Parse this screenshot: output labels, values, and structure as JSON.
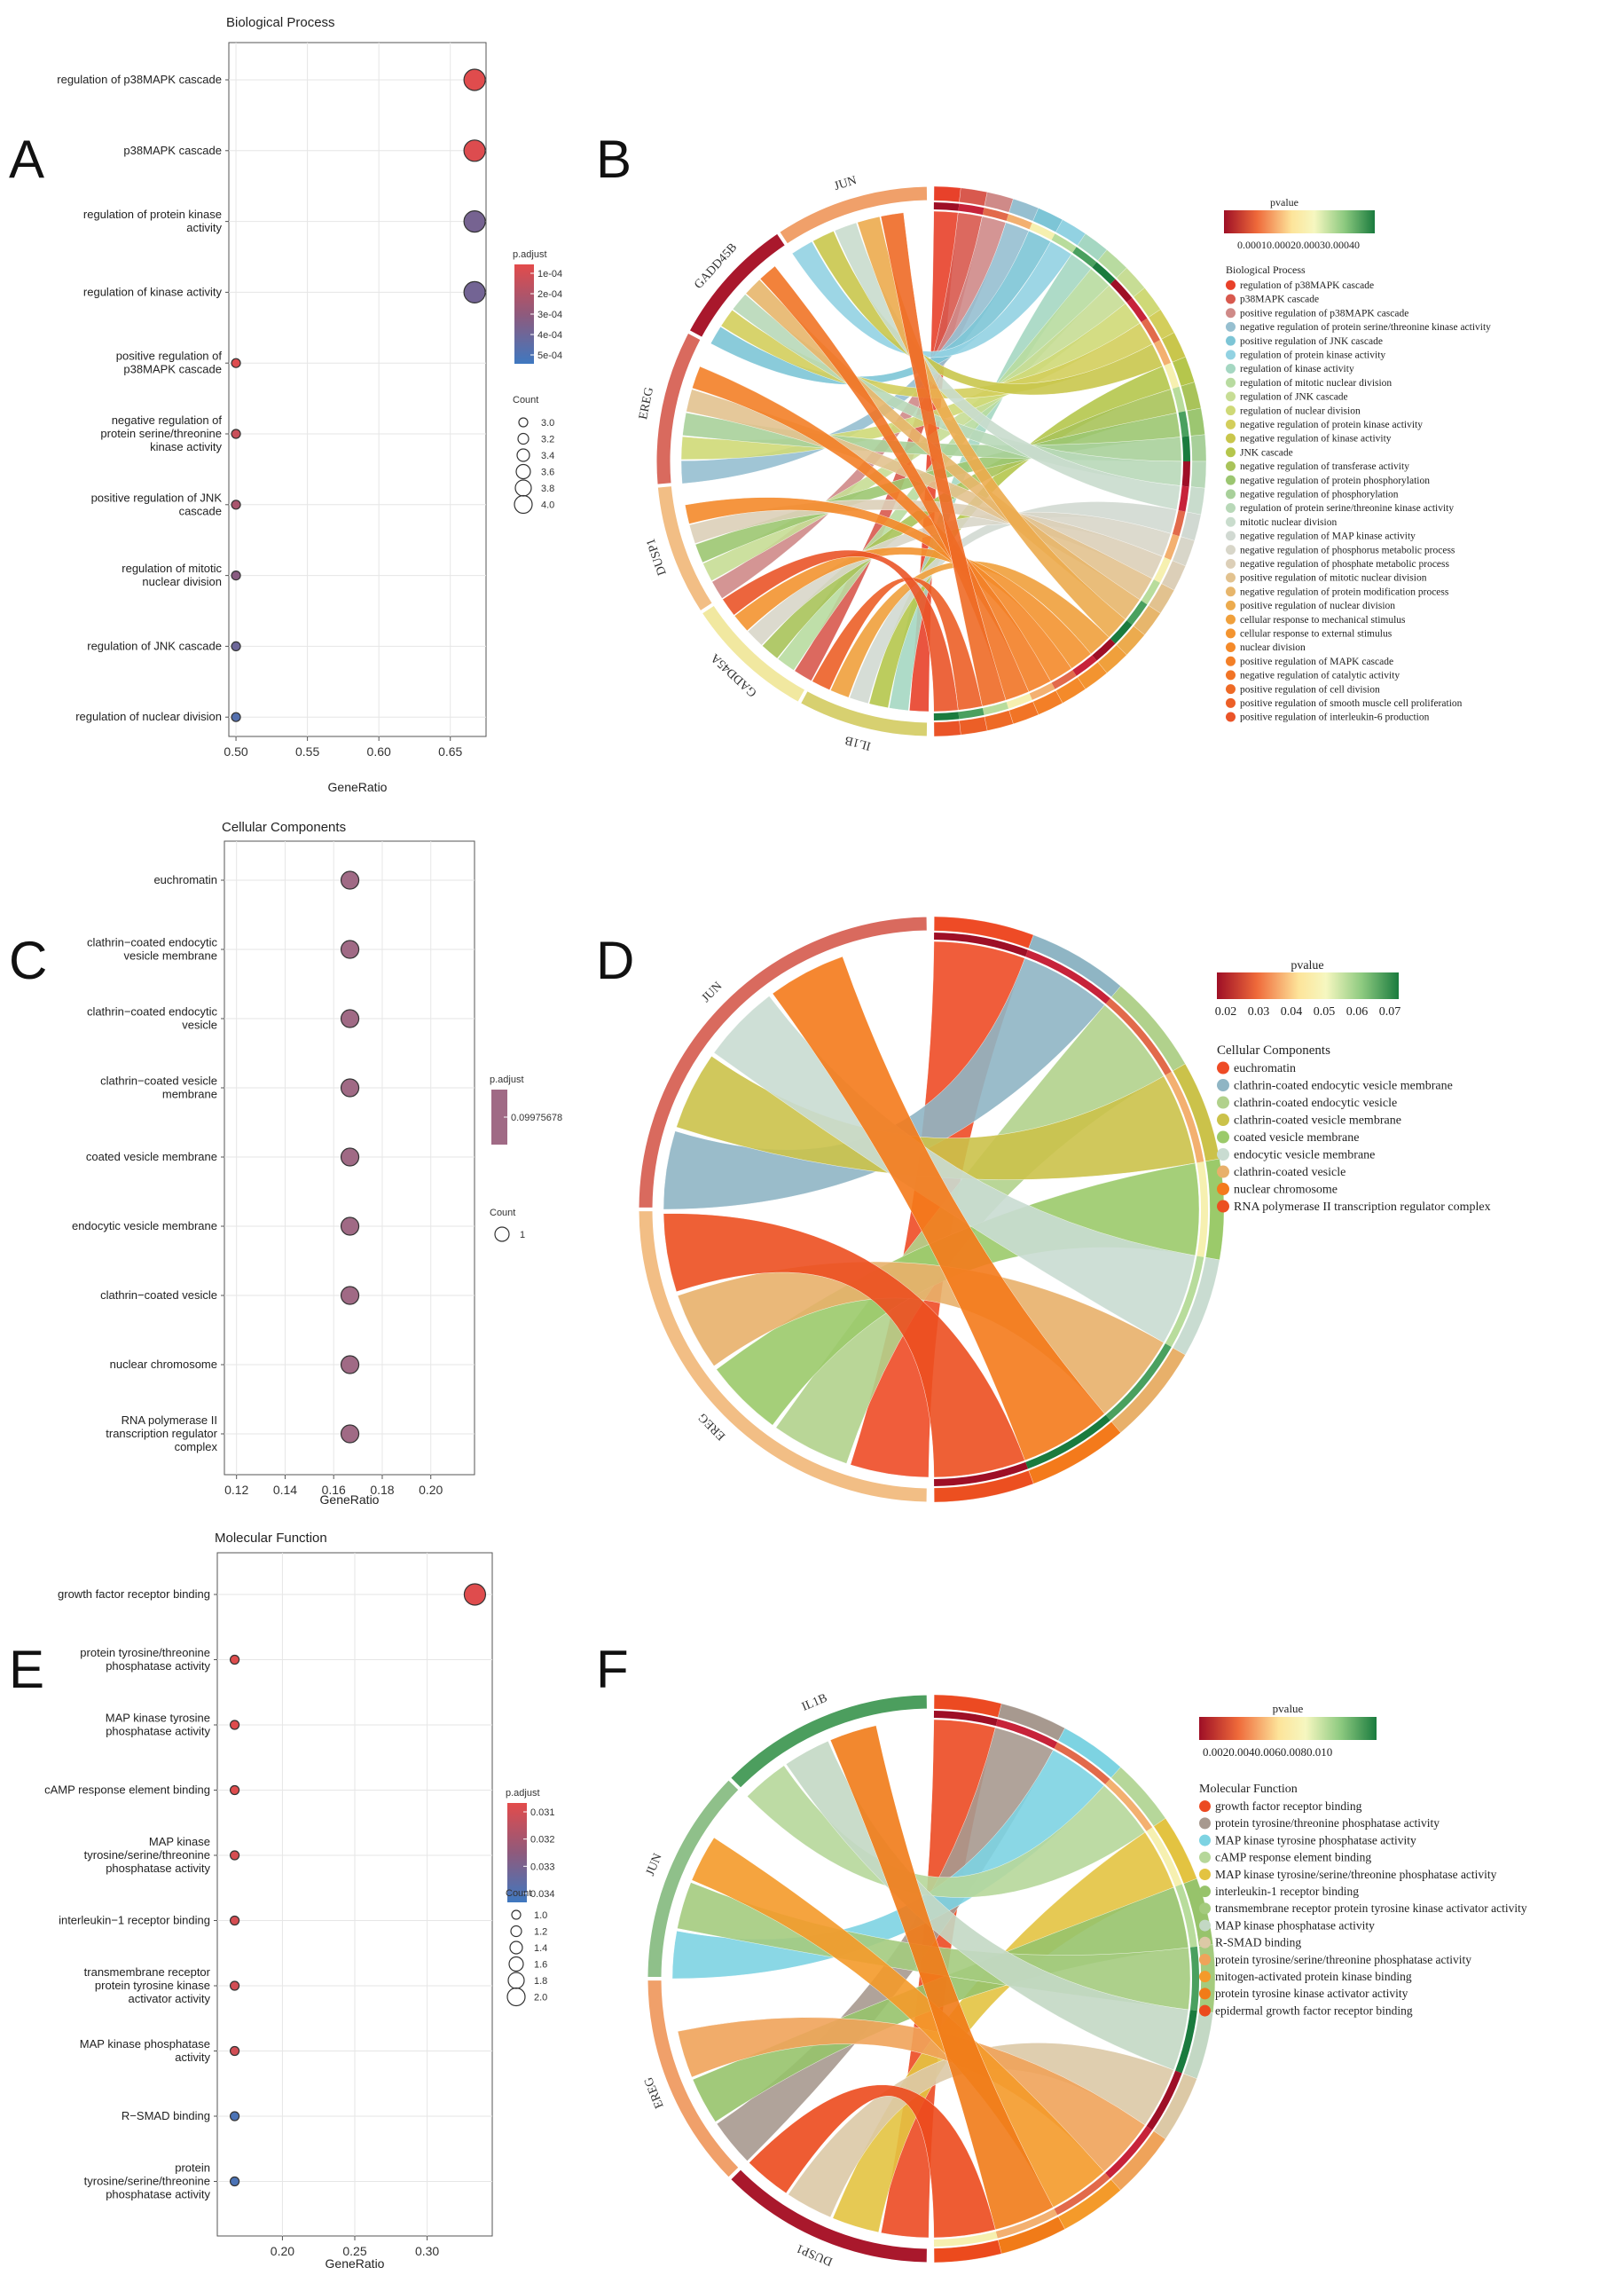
{
  "panel_letters": [
    "A",
    "B",
    "C",
    "D",
    "E",
    "F"
  ],
  "chart_data": [
    {
      "id": "A",
      "type": "scatter",
      "title": "Biological Process",
      "xlabel": "GeneRatio",
      "ylabel": "",
      "xlim": [
        0.495,
        0.675
      ],
      "xticks": [
        0.5,
        0.55,
        0.6,
        0.65
      ],
      "xtick_labels": [
        "0.50",
        "0.55",
        "0.60",
        "0.65"
      ],
      "categories": [
        "regulation of p38MAPK cascade",
        "p38MAPK cascade",
        "regulation of protein kinase activity",
        "regulation of kinase activity",
        "positive regulation of p38MAPK cascade",
        "negative regulation of protein serine/threonine kinase activity",
        "positive regulation of JNK cascade",
        "regulation of mitotic nuclear division",
        "regulation of JNK cascade",
        "regulation of nuclear division"
      ],
      "category_lines": [
        [
          "regulation of p38MAPK cascade"
        ],
        [
          "p38MAPK cascade"
        ],
        [
          "regulation of protein kinase",
          "activity"
        ],
        [
          "regulation of kinase activity"
        ],
        [
          "positive regulation of",
          "p38MAPK cascade"
        ],
        [
          "negative regulation of",
          "protein serine/threonine",
          "kinase activity"
        ],
        [
          "positive regulation of JNK",
          "cascade"
        ],
        [
          "regulation of mitotic",
          "nuclear division"
        ],
        [
          "regulation of JNK cascade"
        ],
        [
          "regulation of nuclear division"
        ]
      ],
      "gene_ratio": [
        0.667,
        0.667,
        0.667,
        0.667,
        0.5,
        0.5,
        0.5,
        0.5,
        0.5,
        0.5
      ],
      "count": [
        4,
        4,
        4,
        4,
        3,
        3,
        3,
        3,
        3,
        3
      ],
      "p_adjust": [
        2e-05,
        3e-05,
        0.00035,
        0.00036,
        3e-05,
        9e-05,
        0.00019,
        0.00029,
        0.00038,
        0.00046
      ],
      "color_legend": {
        "title": "p.adjust",
        "ticks": [
          "1e-04",
          "2e-04",
          "3e-04",
          "4e-04",
          "5e-04"
        ],
        "range": [
          1e-05,
          0.00053
        ]
      },
      "size_legend": {
        "title": "Count",
        "ticks": [
          "3.0",
          "3.2",
          "3.4",
          "3.6",
          "3.8",
          "4.0"
        ],
        "values": [
          3.0,
          3.2,
          3.4,
          3.6,
          3.8,
          4.0
        ]
      }
    },
    {
      "id": "B",
      "type": "chord",
      "genes": [
        "IL1B",
        "GADD45A",
        "DUSP1",
        "EREG",
        "GADD45B",
        "JUN"
      ],
      "pvalue_legend": {
        "title": "pvalue",
        "tick_text": "0.00010.00020.00030.00040"
      },
      "term_legend_title": "Biological Process",
      "terms": [
        "regulation of p38MAPK cascade",
        "p38MAPK cascade",
        "positive regulation of p38MAPK cascade",
        "negative regulation of protein serine/threonine kinase activity",
        "positive regulation of JNK cascade",
        "regulation of protein kinase activity",
        "regulation of kinase activity",
        "regulation of mitotic nuclear division",
        "regulation of JNK cascade",
        "regulation of nuclear division",
        "negative regulation of protein kinase activity",
        "negative regulation of kinase activity",
        "JNK cascade",
        "negative regulation of transferase activity",
        "negative regulation of protein phosphorylation",
        "negative regulation of phosphorylation",
        "regulation of protein serine/threonine kinase activity",
        "mitotic nuclear division",
        "negative regulation of MAP kinase activity",
        "negative regulation of phosphorus metabolic process",
        "negative regulation of phosphate metabolic process",
        "positive regulation of mitotic nuclear division",
        "negative regulation of protein modification process",
        "positive regulation of nuclear division",
        "cellular response to mechanical stimulus",
        "cellular response to external stimulus",
        "nuclear division",
        "positive regulation of MAPK cascade",
        "negative regulation of catalytic activity",
        "positive regulation of cell division",
        "positive regulation of smooth muscle cell proliferation",
        "positive regulation of interleukin-6 production"
      ],
      "term_colors": [
        "#e8412a",
        "#d8594e",
        "#cf8a88",
        "#96bfd0",
        "#7dc5d6",
        "#92d2e2",
        "#a5d7c2",
        "#b8dba0",
        "#c7dd95",
        "#cfd977",
        "#d3ce5c",
        "#c9c64c",
        "#b5c64c",
        "#a9c35a",
        "#9cc671",
        "#a8d09a",
        "#b8d8b8",
        "#c9dccd",
        "#d1d9d2",
        "#d8d6c9",
        "#dccfb8",
        "#e2c28f",
        "#e7b66c",
        "#ecab4e",
        "#f0a03c",
        "#f39430",
        "#f48a2a",
        "#f37f27",
        "#f17426",
        "#ee6a26",
        "#ec5f27",
        "#ea5428"
      ]
    },
    {
      "id": "C",
      "type": "scatter",
      "title": "Cellular Components",
      "xlabel": "GeneRatio",
      "ylabel": "",
      "xlim": [
        0.115,
        0.218
      ],
      "xticks": [
        0.12,
        0.14,
        0.16,
        0.18,
        0.2
      ],
      "xtick_labels": [
        "0.12",
        "0.14",
        "0.16",
        "0.18",
        "0.20"
      ],
      "categories": [
        "euchromatin",
        "clathrin-coated endocytic vesicle membrane",
        "clathrin-coated endocytic vesicle",
        "clathrin-coated vesicle membrane",
        "coated vesicle membrane",
        "endocytic vesicle membrane",
        "clathrin-coated vesicle",
        "nuclear chromosome",
        "RNA polymerase II transcription regulator complex"
      ],
      "category_lines": [
        [
          "euchromatin"
        ],
        [
          "clathrin−coated endocytic",
          "vesicle membrane"
        ],
        [
          "clathrin−coated endocytic",
          "vesicle"
        ],
        [
          "clathrin−coated vesicle",
          "membrane"
        ],
        [
          "coated vesicle membrane"
        ],
        [
          "endocytic vesicle membrane"
        ],
        [
          "clathrin−coated vesicle"
        ],
        [
          "nuclear chromosome"
        ],
        [
          "RNA polymerase II",
          "transcription regulator",
          "complex"
        ]
      ],
      "gene_ratio": [
        0.1667,
        0.1667,
        0.1667,
        0.1667,
        0.1667,
        0.1667,
        0.1667,
        0.1667,
        0.1667
      ],
      "count": [
        1,
        1,
        1,
        1,
        1,
        1,
        1,
        1,
        1
      ],
      "p_adjust": [
        0.09975678,
        0.09975678,
        0.09975678,
        0.09975678,
        0.09975678,
        0.09975678,
        0.09975678,
        0.09975678,
        0.09975678
      ],
      "color_legend": {
        "title": "p.adjust",
        "ticks": [
          "0.09975678"
        ]
      },
      "size_legend": {
        "title": "Count",
        "ticks": [
          "1"
        ],
        "values": [
          1
        ]
      }
    },
    {
      "id": "D",
      "type": "chord",
      "genes": [
        "EREG",
        "JUN"
      ],
      "pvalue_legend": {
        "title": "pvalue",
        "ticks": [
          "0.02",
          "0.03",
          "0.04",
          "0.05",
          "0.06",
          "0.07"
        ]
      },
      "term_legend_title": "Cellular Components",
      "terms": [
        "euchromatin",
        "clathrin-coated endocytic vesicle membrane",
        "clathrin-coated endocytic vesicle",
        "clathrin-coated vesicle membrane",
        "coated vesicle membrane",
        "endocytic vesicle membrane",
        "clathrin-coated vesicle",
        "nuclear chromosome",
        "RNA polymerase II transcription regulator complex"
      ],
      "term_colors": [
        "#ee4b26",
        "#8fb5c4",
        "#b1d18c",
        "#cbc24a",
        "#9bca6a",
        "#c9dcd1",
        "#e8b06a",
        "#f47a1b",
        "#ec4f20"
      ]
    },
    {
      "id": "E",
      "type": "scatter",
      "title": "Molecular Function",
      "xlabel": "GeneRatio",
      "ylabel": "",
      "xlim": [
        0.155,
        0.345
      ],
      "xticks": [
        0.2,
        0.25,
        0.3
      ],
      "xtick_labels": [
        "0.20",
        "0.25",
        "0.30"
      ],
      "categories": [
        "growth factor receptor binding",
        "protein tyrosine/threonine phosphatase activity",
        "MAP kinase tyrosine phosphatase activity",
        "cAMP response element binding",
        "MAP kinase tyrosine/serine/threonine phosphatase activity",
        "interleukin-1 receptor binding",
        "transmembrane receptor protein tyrosine kinase activator activity",
        "MAP kinase phosphatase activity",
        "R-SMAD binding",
        "protein tyrosine/serine/threonine phosphatase activity"
      ],
      "category_lines": [
        [
          "growth factor receptor binding"
        ],
        [
          "protein tyrosine/threonine",
          "phosphatase activity"
        ],
        [
          "MAP kinase tyrosine",
          "phosphatase activity"
        ],
        [
          "cAMP response element binding"
        ],
        [
          "MAP kinase",
          "tyrosine/serine/threonine",
          "phosphatase activity"
        ],
        [
          "interleukin−1 receptor binding"
        ],
        [
          "transmembrane receptor",
          "protein tyrosine kinase",
          "activator activity"
        ],
        [
          "MAP kinase phosphatase",
          "activity"
        ],
        [
          "R−SMAD binding"
        ],
        [
          "protein",
          "tyrosine/serine/threonine",
          "phosphatase activity"
        ]
      ],
      "gene_ratio": [
        0.333,
        0.167,
        0.167,
        0.167,
        0.167,
        0.167,
        0.167,
        0.167,
        0.167,
        0.167
      ],
      "count": [
        2,
        1,
        1,
        1,
        1,
        1,
        1,
        1,
        1,
        1
      ],
      "p_adjust": [
        0.0306,
        0.0306,
        0.0306,
        0.0306,
        0.0308,
        0.0308,
        0.0309,
        0.0309,
        0.0342,
        0.0342
      ],
      "color_legend": {
        "title": "p.adjust",
        "ticks": [
          "0.031",
          "0.032",
          "0.033",
          "0.034"
        ],
        "range": [
          0.0305,
          0.0345
        ]
      },
      "size_legend": {
        "title": "Count",
        "ticks": [
          "1.0",
          "1.2",
          "1.4",
          "1.6",
          "1.8",
          "2.0"
        ],
        "values": [
          1.0,
          1.2,
          1.4,
          1.6,
          1.8,
          2.0
        ]
      }
    },
    {
      "id": "F",
      "type": "chord",
      "genes": [
        "DUSP1",
        "EREG",
        "JUN",
        "IL1B"
      ],
      "pvalue_legend": {
        "title": "pvalue",
        "tick_text": "0.0020.0040.0060.0080.010"
      },
      "term_legend_title": "Molecular Function",
      "terms": [
        "growth factor receptor binding",
        "protein tyrosine/threonine phosphatase activity",
        "MAP kinase tyrosine phosphatase activity",
        "cAMP response element binding",
        "MAP kinase tyrosine/serine/threonine phosphatase activity",
        "interleukin-1 receptor binding",
        "transmembrane receptor protein tyrosine kinase activator activity",
        "MAP kinase phosphatase activity",
        "R-SMAD binding",
        "protein tyrosine/serine/threonine phosphatase activity",
        "mitogen-activated protein kinase binding",
        "protein tyrosine kinase activator activity",
        "epidermal growth factor receptor binding"
      ],
      "term_colors": [
        "#ec4a22",
        "#a7998f",
        "#7dd3e2",
        "#b6d79a",
        "#e3c341",
        "#97c36b",
        "#a4cb7e",
        "#c3d8c4",
        "#dcc9a6",
        "#efa35a",
        "#f49a2a",
        "#f17b18",
        "#ec4a1d"
      ]
    }
  ]
}
